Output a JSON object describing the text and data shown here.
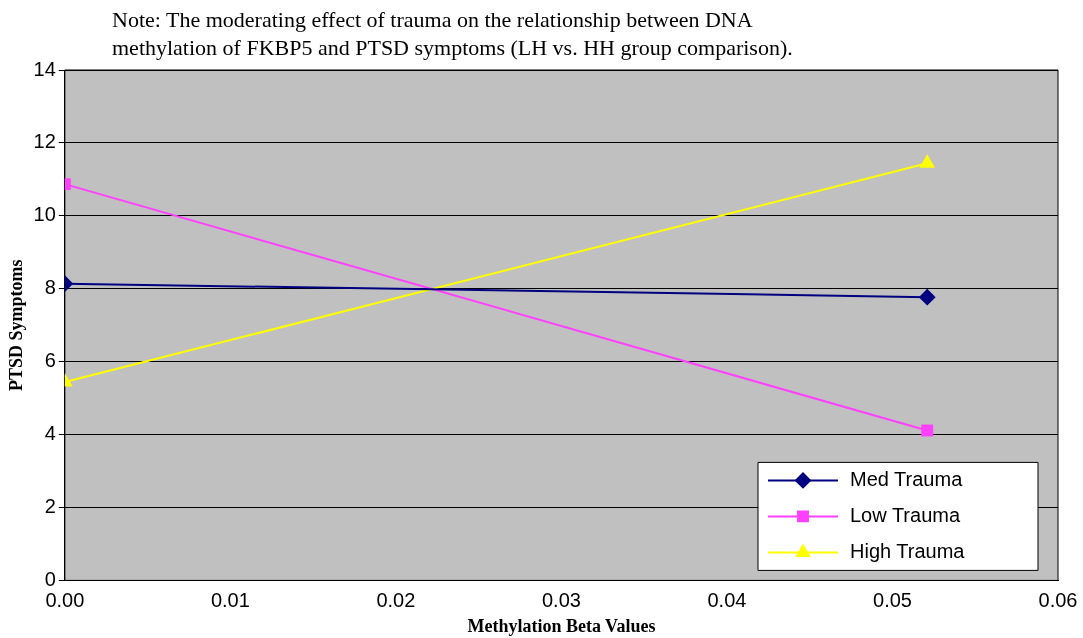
{
  "chart_data": {
    "type": "line",
    "title": "Note: The moderating effect of trauma on the relationship between DNA\nmethylation of FKBP5 and PTSD symptoms (LH vs. HH group comparison).",
    "xlabel": "Methylation Beta Values",
    "ylabel": "PTSD Symptoms",
    "x": [
      0,
      0.0521
    ],
    "series": [
      {
        "name": "Med Trauma",
        "color": "#000080",
        "values": [
          8.14,
          7.77
        ],
        "marker": "diamond"
      },
      {
        "name": "Low Trauma",
        "color": "#ff40ff",
        "values": [
          10.87,
          4.11
        ],
        "marker": "square"
      },
      {
        "name": "High Trauma",
        "color": "#ffff00",
        "values": [
          5.44,
          11.44
        ],
        "marker": "triangle"
      }
    ],
    "xlim": [
      0,
      0.06
    ],
    "xticks": [
      {
        "value": 0,
        "label": "0.00"
      },
      {
        "value": 0.01,
        "label": "0.01"
      },
      {
        "value": 0.02,
        "label": "0.02"
      },
      {
        "value": 0.03,
        "label": "0.03"
      },
      {
        "value": 0.04,
        "label": "0.04"
      },
      {
        "value": 0.05,
        "label": "0.05"
      },
      {
        "value": 0.06,
        "label": "0.06"
      }
    ],
    "ylim": [
      0,
      14
    ],
    "yticks": [
      0,
      2,
      4,
      6,
      8,
      10,
      12,
      14
    ],
    "grid": "y",
    "legend": "bottom right",
    "line_style": "solid"
  }
}
